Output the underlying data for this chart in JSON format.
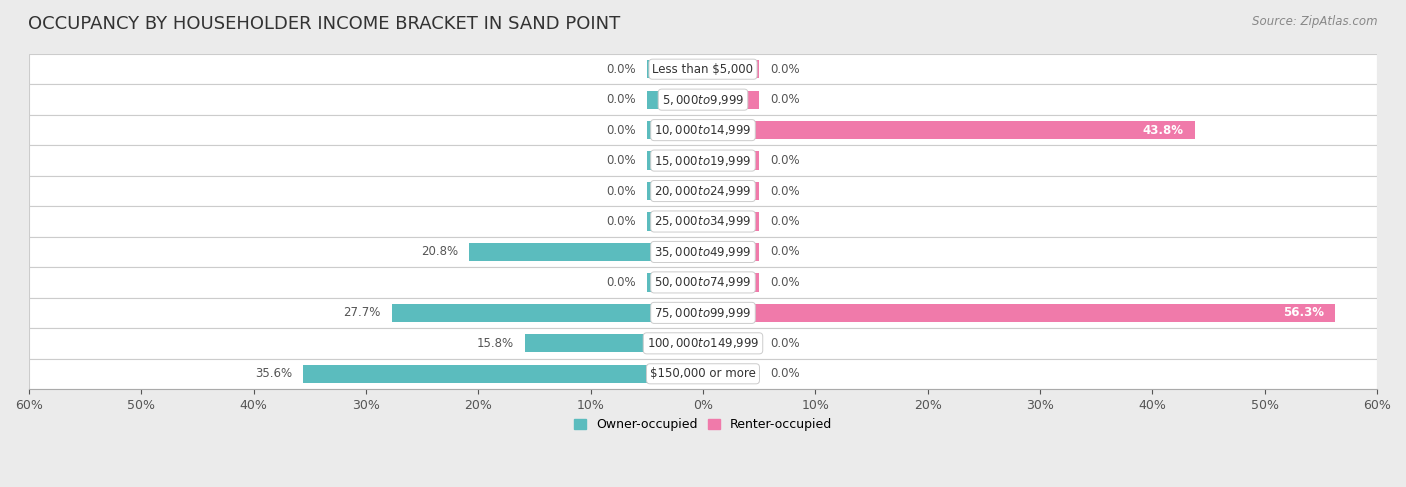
{
  "title": "OCCUPANCY BY HOUSEHOLDER INCOME BRACKET IN SAND POINT",
  "source": "Source: ZipAtlas.com",
  "categories": [
    "Less than $5,000",
    "$5,000 to $9,999",
    "$10,000 to $14,999",
    "$15,000 to $19,999",
    "$20,000 to $24,999",
    "$25,000 to $34,999",
    "$35,000 to $49,999",
    "$50,000 to $74,999",
    "$75,000 to $99,999",
    "$100,000 to $149,999",
    "$150,000 or more"
  ],
  "owner_values": [
    0.0,
    0.0,
    0.0,
    0.0,
    0.0,
    0.0,
    20.8,
    0.0,
    27.7,
    15.8,
    35.6
  ],
  "renter_values": [
    0.0,
    0.0,
    43.8,
    0.0,
    0.0,
    0.0,
    0.0,
    0.0,
    56.3,
    0.0,
    0.0
  ],
  "owner_color": "#5bbcbe",
  "renter_color": "#f07aaa",
  "owner_label": "Owner-occupied",
  "renter_label": "Renter-occupied",
  "xlim": 60.0,
  "bar_height": 0.6,
  "bg_color": "#ebebeb",
  "row_bg_color": "#ffffff",
  "title_fontsize": 13,
  "label_fontsize": 8.5,
  "axis_fontsize": 9,
  "source_fontsize": 8.5,
  "min_owner_bar": 5.0,
  "min_renter_bar": 5.0
}
